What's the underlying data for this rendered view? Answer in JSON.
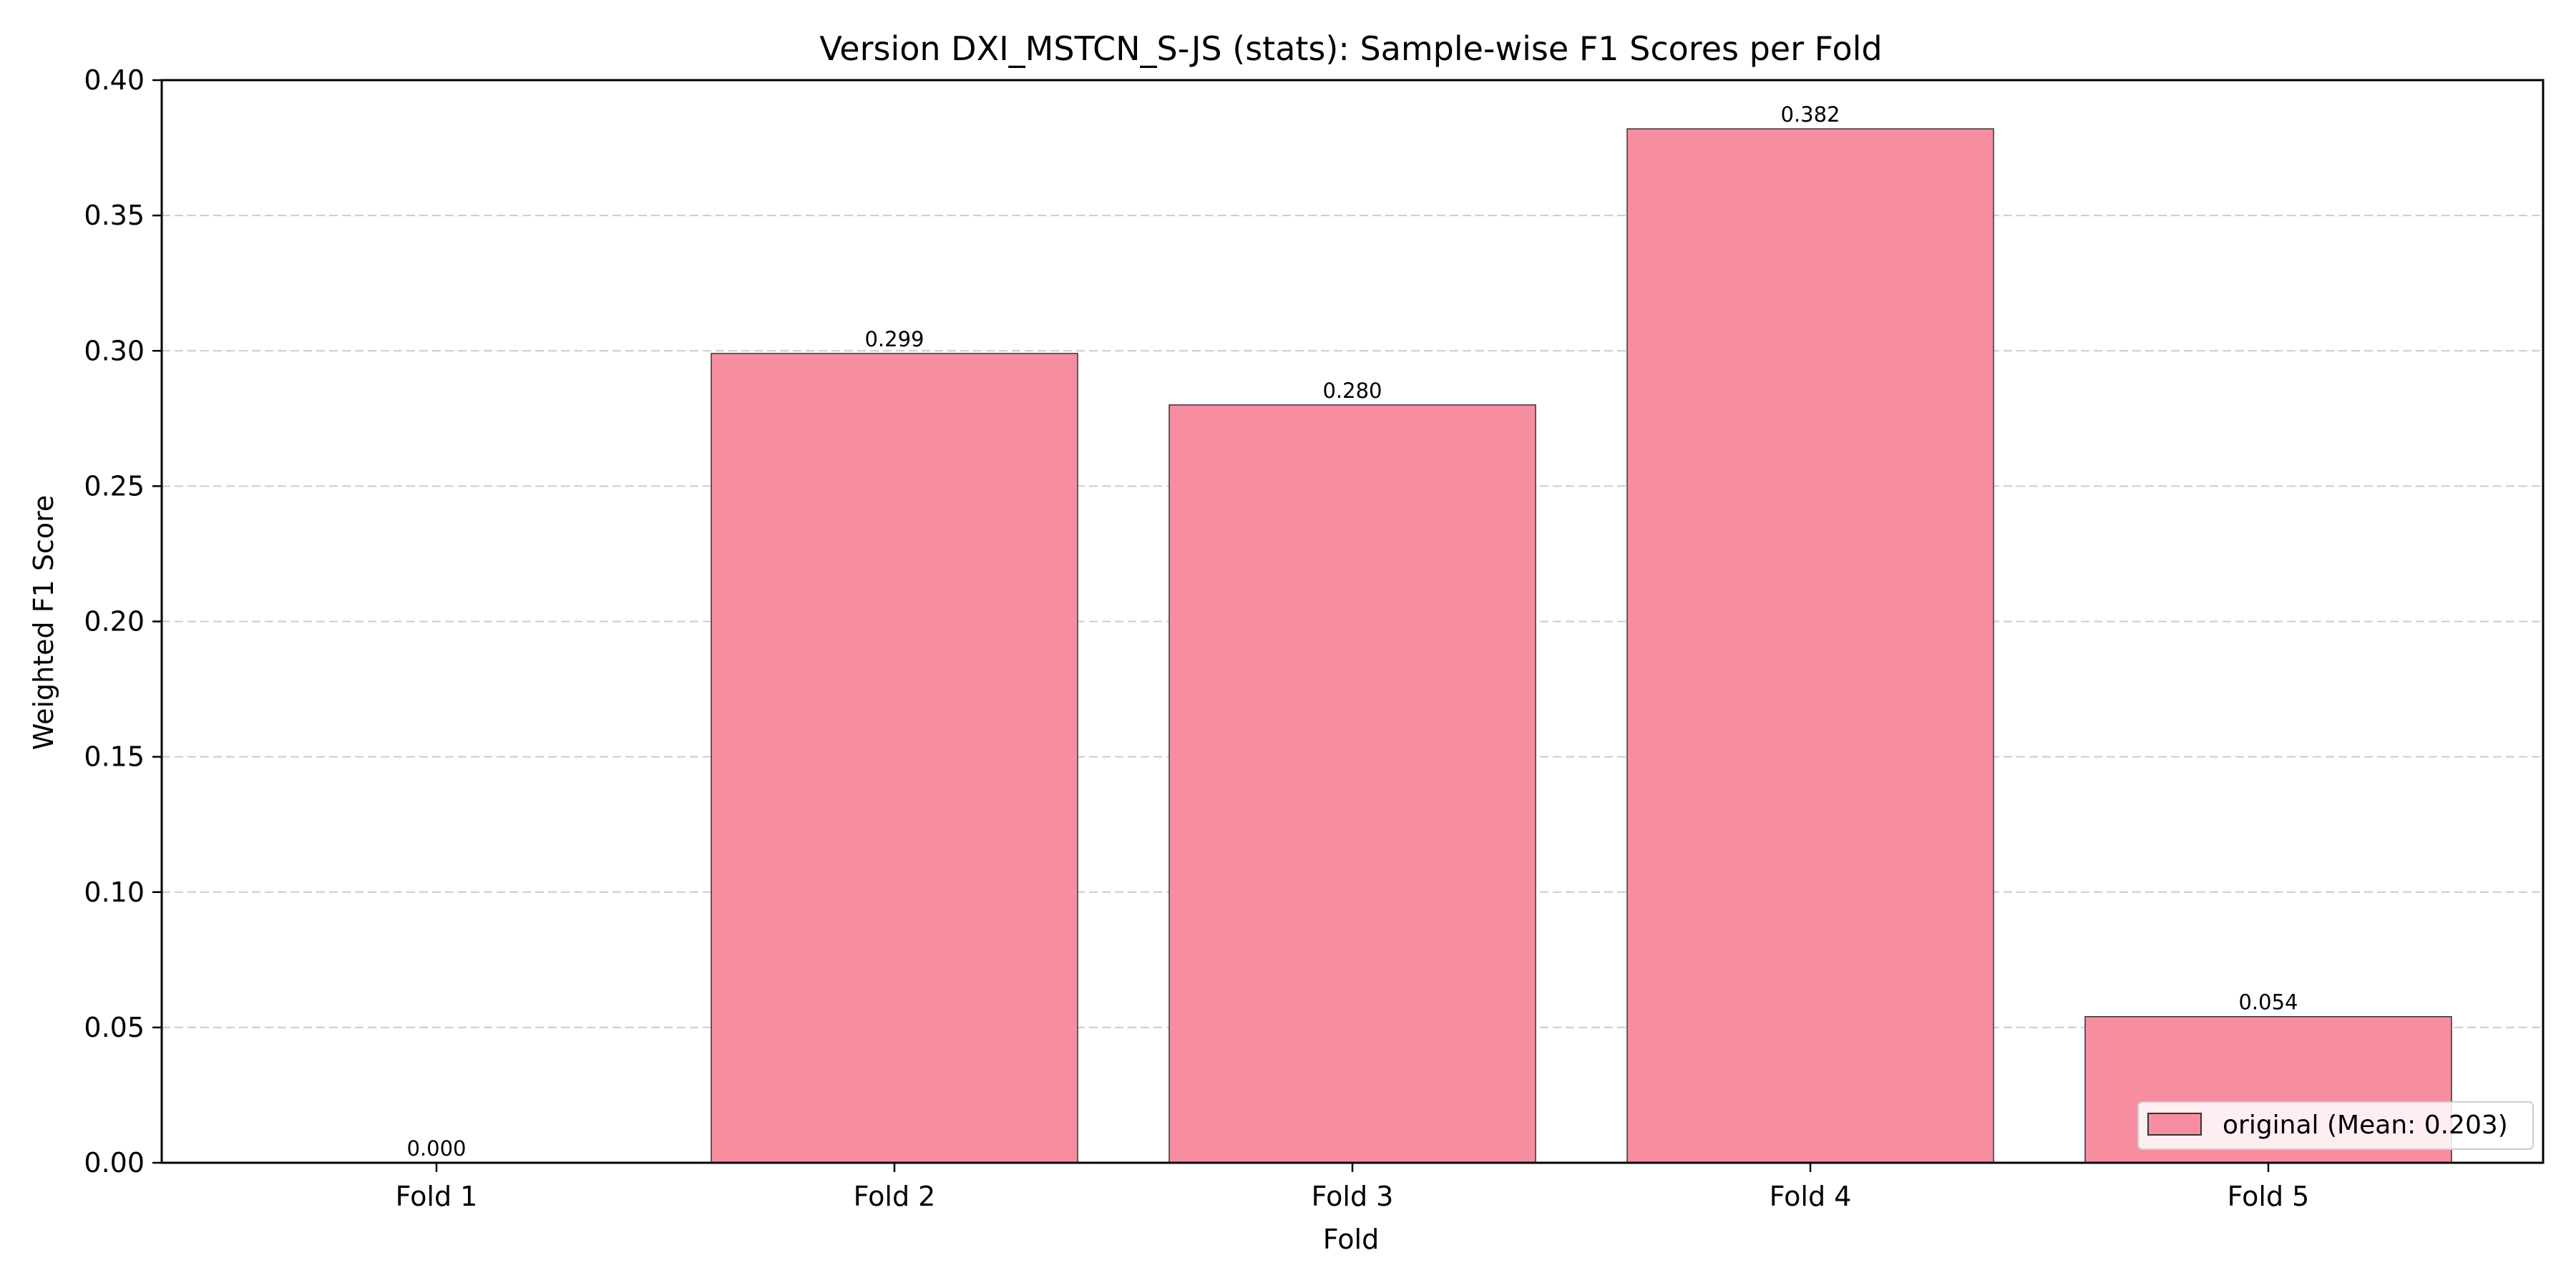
{
  "chart_data": {
    "type": "bar",
    "title": "Version DXI_MSTCN_S-JS (stats): Sample-wise F1 Scores per Fold",
    "xlabel": "Fold",
    "ylabel": "Weighted F1 Score",
    "categories": [
      "Fold 1",
      "Fold 2",
      "Fold 3",
      "Fold 4",
      "Fold 5"
    ],
    "series": [
      {
        "name": "original (Mean: 0.203)",
        "values": [
          0.0,
          0.299,
          0.28,
          0.382,
          0.054
        ],
        "value_labels": [
          "0.000",
          "0.299",
          "0.280",
          "0.382",
          "0.054"
        ],
        "color": "#f78ea0"
      }
    ],
    "ylim": [
      0,
      0.4
    ],
    "yticks": [
      0.0,
      0.05,
      0.1,
      0.15,
      0.2,
      0.25,
      0.3,
      0.35,
      0.4
    ],
    "ytick_labels": [
      "0.00",
      "0.05",
      "0.10",
      "0.15",
      "0.20",
      "0.25",
      "0.30",
      "0.35",
      "0.40"
    ],
    "grid": "y-dashed",
    "legend_position": "lower-right",
    "edge_color": "#333333",
    "grid_color": "#cccccc"
  }
}
